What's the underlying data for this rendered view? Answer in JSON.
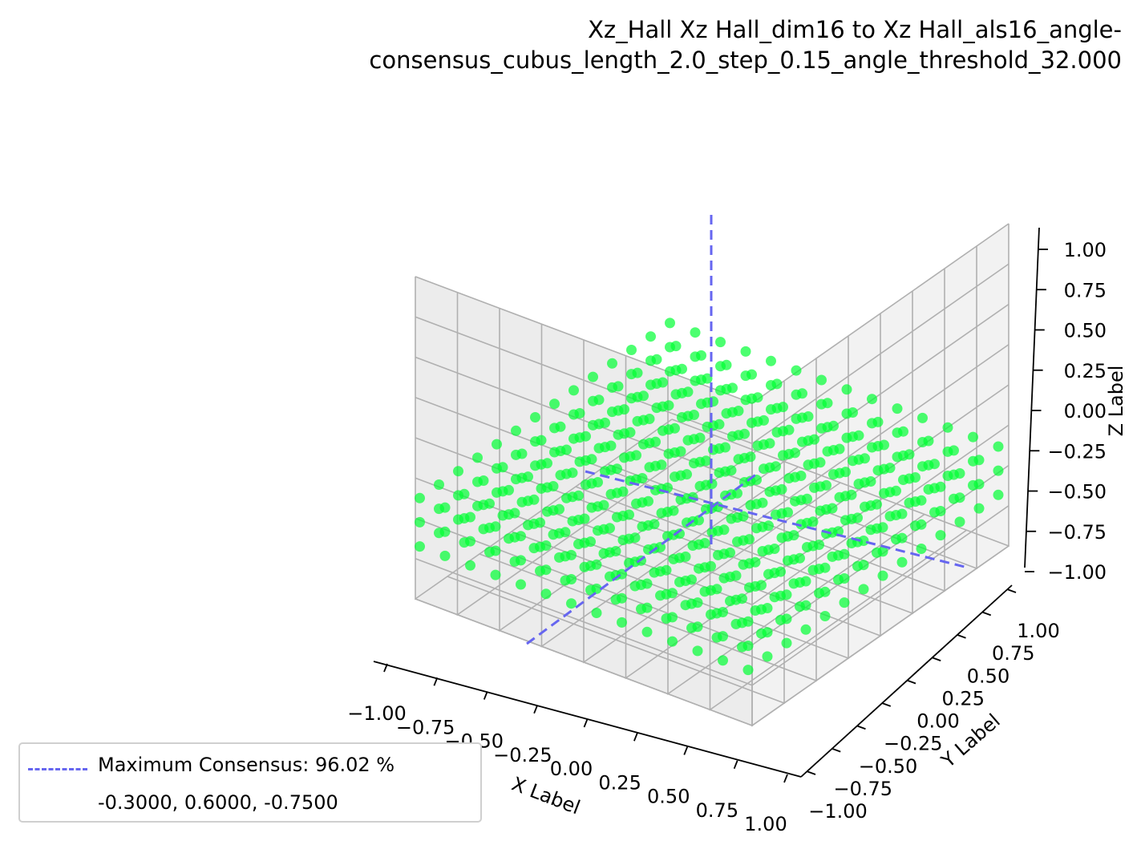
{
  "title": {
    "line1": "Xz_Hall Xz Hall_dim16 to Xz Hall_als16_angle-",
    "line2": "consensus_cubus_length_2.0_step_0.15_angle_threshold_32.000"
  },
  "chart_data": {
    "type": "scatter3d",
    "xlabel": "X Label",
    "ylabel": "Y Label",
    "zlabel": "Z Label",
    "xlim": [
      -1.0,
      1.0
    ],
    "ylim": [
      -1.0,
      1.0
    ],
    "zlim": [
      -1.0,
      1.0
    ],
    "x_ticks": [
      "−1.00",
      "−0.75",
      "−0.50",
      "−0.25",
      "0.00",
      "0.25",
      "0.50",
      "0.75",
      "1.00"
    ],
    "y_ticks": [
      "−1.00",
      "−0.75",
      "−0.50",
      "−0.25",
      "0.00",
      "0.25",
      "0.50",
      "0.75",
      "1.00"
    ],
    "z_ticks": [
      "−1.00",
      "−0.75",
      "−0.50",
      "−0.25",
      "0.00",
      "0.25",
      "0.50",
      "0.75",
      "1.00"
    ],
    "grid": true,
    "point_color": "#00ff33",
    "line_color": "#6666f0",
    "point_grid": {
      "x_start": -0.9,
      "x_step": 0.15,
      "x_count": 14,
      "y_start": -0.9,
      "y_step": 0.15,
      "y_count": 14,
      "z_values": [
        -0.75,
        -0.6,
        -0.45
      ]
    },
    "maximum": {
      "x": -0.3,
      "y": 0.6,
      "z": -0.75
    }
  },
  "legend": {
    "entry_label": "Maximum Consensus: 96.02 %",
    "coords_label": "-0.3000, 0.6000, -0.7500",
    "placement": "lower-left"
  }
}
